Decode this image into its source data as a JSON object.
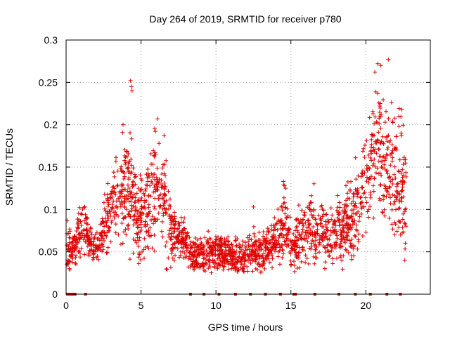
{
  "colors": {
    "series": "#e00000",
    "grid": "#a0a0a0",
    "axis": "#000000"
  },
  "chart_data": {
    "type": "scatter",
    "title": "Day 264 of 2019, SRMTID for receiver p780",
    "xlabel": "GPS time / hours",
    "ylabel": "SRMTID / TECUs",
    "xlim": [
      0,
      24.3
    ],
    "ylim": [
      0,
      0.3
    ],
    "x_ticks": [
      0,
      5,
      10,
      15,
      20
    ],
    "x_tick_labels": [
      "0",
      "5",
      "10",
      "15",
      "20"
    ],
    "y_ticks": [
      0,
      0.05,
      0.1,
      0.15,
      0.2,
      0.25,
      0.3
    ],
    "y_tick_labels": [
      "0",
      "0.05",
      "0.1",
      "0.15",
      "0.2",
      "0.25",
      "0.3"
    ],
    "grid": true,
    "marker": "plus",
    "series": [
      {
        "name": "SRMTID",
        "profile": [
          [
            0.0,
            0.065,
            0.02
          ],
          [
            0.4,
            0.05,
            0.012
          ],
          [
            0.8,
            0.07,
            0.02
          ],
          [
            1.3,
            0.075,
            0.02
          ],
          [
            1.8,
            0.055,
            0.015
          ],
          [
            2.3,
            0.065,
            0.015
          ],
          [
            2.8,
            0.09,
            0.03
          ],
          [
            3.3,
            0.11,
            0.035
          ],
          [
            3.8,
            0.115,
            0.04
          ],
          [
            4.3,
            0.13,
            0.045
          ],
          [
            4.7,
            0.085,
            0.03
          ],
          [
            5.2,
            0.095,
            0.035
          ],
          [
            5.7,
            0.12,
            0.04
          ],
          [
            6.2,
            0.13,
            0.04
          ],
          [
            6.7,
            0.095,
            0.035
          ],
          [
            7.2,
            0.07,
            0.02
          ],
          [
            7.8,
            0.065,
            0.015
          ],
          [
            8.5,
            0.045,
            0.012
          ],
          [
            9.3,
            0.05,
            0.015
          ],
          [
            10.0,
            0.05,
            0.015
          ],
          [
            10.8,
            0.048,
            0.012
          ],
          [
            11.5,
            0.04,
            0.012
          ],
          [
            12.3,
            0.05,
            0.015
          ],
          [
            13.0,
            0.05,
            0.015
          ],
          [
            13.6,
            0.055,
            0.015
          ],
          [
            14.2,
            0.07,
            0.02
          ],
          [
            14.6,
            0.085,
            0.03
          ],
          [
            15.0,
            0.055,
            0.015
          ],
          [
            15.6,
            0.065,
            0.02
          ],
          [
            16.3,
            0.08,
            0.025
          ],
          [
            17.0,
            0.075,
            0.025
          ],
          [
            17.6,
            0.065,
            0.02
          ],
          [
            18.3,
            0.075,
            0.025
          ],
          [
            19.0,
            0.09,
            0.03
          ],
          [
            19.6,
            0.11,
            0.035
          ],
          [
            20.2,
            0.14,
            0.04
          ],
          [
            20.6,
            0.18,
            0.045
          ],
          [
            21.0,
            0.17,
            0.05
          ],
          [
            21.5,
            0.145,
            0.05
          ],
          [
            22.0,
            0.14,
            0.05
          ],
          [
            22.6,
            0.12,
            0.05
          ]
        ],
        "x_range": [
          0.0,
          22.7
        ],
        "count": 2200,
        "extreme_points": [
          [
            4.3,
            0.252
          ],
          [
            4.35,
            0.245
          ],
          [
            4.4,
            0.24
          ],
          [
            6.1,
            0.207
          ],
          [
            3.8,
            0.2
          ],
          [
            20.8,
            0.272
          ],
          [
            21.0,
            0.27
          ],
          [
            21.5,
            0.277
          ],
          [
            20.6,
            0.262
          ],
          [
            22.4,
            0.218
          ],
          [
            22.2,
            0.21
          ],
          [
            12.5,
            0.103
          ],
          [
            14.5,
            0.133
          ],
          [
            0.05,
            0.035
          ],
          [
            22.6,
            0.04
          ]
        ]
      }
    ],
    "zero_value_hours": [
      0.1,
      0.2,
      0.3,
      0.4,
      0.5,
      0.6,
      1.3,
      8.3,
      9.2,
      10.2,
      11.3,
      12.3,
      13.3,
      14.3,
      15.2,
      15.3,
      16.6,
      18.2,
      19.3,
      20.3,
      21.4,
      22.3
    ]
  }
}
